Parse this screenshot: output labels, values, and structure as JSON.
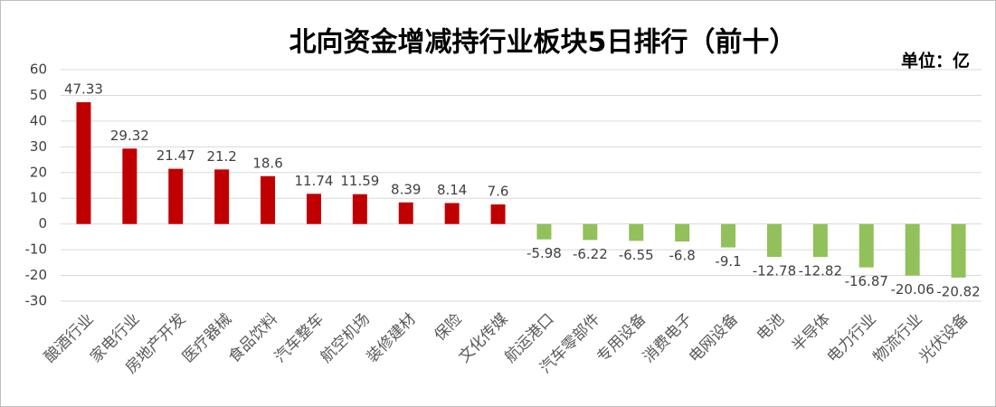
{
  "chart_data": {
    "type": "bar",
    "title": "北向资金增减持行业板块5日排行（前十）",
    "unit_note": "单位：亿",
    "categories": [
      "酿酒行业",
      "家电行业",
      "房地产开发",
      "医疗器械",
      "食品饮料",
      "汽车整车",
      "航空机场",
      "装修建材",
      "保险",
      "文化传媒",
      "航运港口",
      "汽车零部件",
      "专用设备",
      "消费电子",
      "电网设备",
      "电池",
      "半导体",
      "电力行业",
      "物流行业",
      "光伏设备"
    ],
    "values": [
      47.33,
      29.32,
      21.47,
      21.2,
      18.6,
      11.74,
      11.59,
      8.39,
      8.14,
      7.6,
      -5.98,
      -6.22,
      -6.55,
      -6.8,
      -9.1,
      -12.78,
      -12.82,
      -16.87,
      -20.06,
      -20.82
    ],
    "color_positive": "#c00000",
    "color_negative": "#92c05a",
    "ylim": [
      -30,
      60
    ],
    "yticks": [
      -30,
      -20,
      -10,
      0,
      10,
      20,
      30,
      40,
      50,
      60
    ],
    "grid": true
  }
}
